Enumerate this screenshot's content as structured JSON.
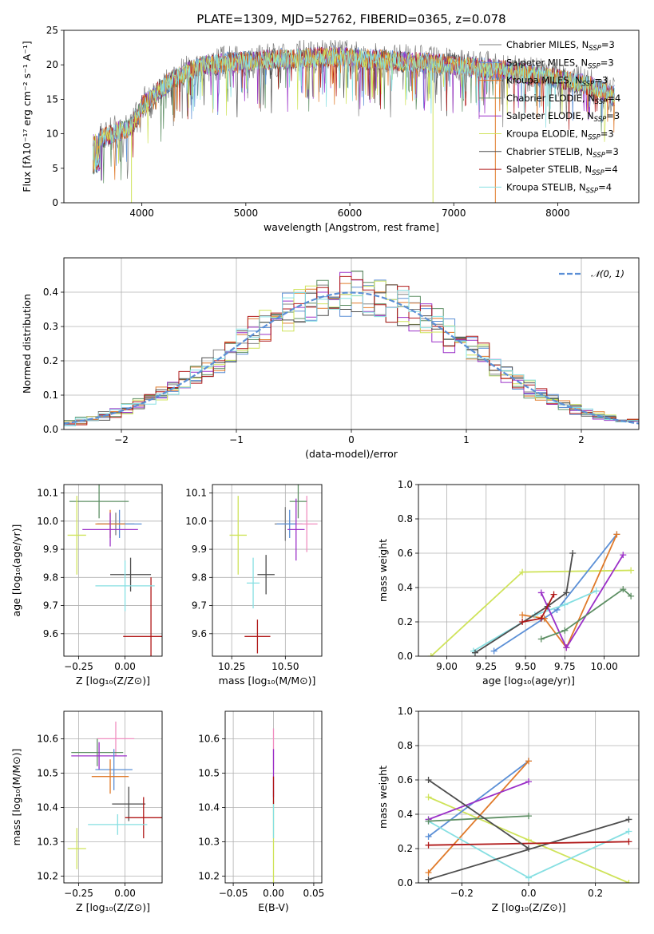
{
  "colors": {
    "Chabrier MILES": "#808080",
    "Salpeter MILES": "#5b8fd6",
    "Kroupa MILES": "#e07a2a",
    "Chabrier ELODIE": "#5e8f64",
    "Salpeter ELODIE": "#9b30c8",
    "Kroupa ELODIE": "#cfe35a",
    "Chabrier STELIB": "#4d4d4d",
    "Salpeter STELIB": "#b01818",
    "Kroupa STELIB": "#86dfe2",
    "pink": "#f08ec0",
    "normal": "#5b8fd6"
  },
  "chart_data": [
    {
      "id": "spectrum",
      "type": "line",
      "title": "PLATE=1309, MJD=52762, FIBERID=0365, z=0.078",
      "xlabel": "wavelength [Angstrom, rest frame]",
      "ylabel": "Flux [fλ10⁻¹⁷ erg cm⁻² s⁻¹ A⁻¹]",
      "xlim": [
        3250,
        8780
      ],
      "ylim": [
        0,
        25
      ],
      "xticks": [
        "4000",
        "5000",
        "6000",
        "7000",
        "8000"
      ],
      "yticks": [
        "0",
        "5",
        "10",
        "15",
        "20",
        "25"
      ],
      "legend_position": "top-right",
      "legend": [
        {
          "name": "Chabrier MILES",
          "sub": "N",
          "ssp": "SSP",
          "n": "=3"
        },
        {
          "name": "Salpeter MILES",
          "sub": "N",
          "ssp": "SSP",
          "n": "=3"
        },
        {
          "name": "Kroupa MILES",
          "sub": "N",
          "ssp": "SSP",
          "n": "=3"
        },
        {
          "name": "Chabrier ELODIE",
          "sub": "N",
          "ssp": "SSP",
          "n": "=4"
        },
        {
          "name": "Salpeter ELODIE",
          "sub": "N",
          "ssp": "SSP",
          "n": "=3"
        },
        {
          "name": "Kroupa ELODIE",
          "sub": "N",
          "ssp": "SSP",
          "n": "=3"
        },
        {
          "name": "Chabrier STELIB",
          "sub": "N",
          "ssp": "SSP",
          "n": "=3"
        },
        {
          "name": "Salpeter STELIB",
          "sub": "N",
          "ssp": "SSP",
          "n": "=4"
        },
        {
          "name": "Kroupa STELIB",
          "sub": "N",
          "ssp": "SSP",
          "n": "=4"
        }
      ],
      "envelope": [
        [
          3530,
          9
        ],
        [
          3700,
          10
        ],
        [
          3900,
          11
        ],
        [
          4000,
          14
        ],
        [
          4300,
          18
        ],
        [
          4600,
          20
        ],
        [
          5000,
          20.5
        ],
        [
          5500,
          21
        ],
        [
          5900,
          21.2
        ],
        [
          6200,
          20.8
        ],
        [
          6500,
          20.5
        ],
        [
          7000,
          20
        ],
        [
          7300,
          19.5
        ],
        [
          7600,
          19
        ],
        [
          8000,
          18
        ],
        [
          8300,
          17
        ],
        [
          8550,
          15.5
        ]
      ]
    },
    {
      "id": "residuals",
      "type": "line",
      "xlabel": "(data-model)/error",
      "ylabel": "Normed distribution",
      "xlim": [
        -2.5,
        2.5
      ],
      "ylim": [
        0,
        0.5
      ],
      "xticks": [
        "−2",
        "−1",
        "0",
        "1",
        "2"
      ],
      "yticks": [
        "0.0",
        "0.1",
        "0.2",
        "0.3",
        "0.4"
      ],
      "legend": "𝒩(0, 1)",
      "histogram_bins": 50
    },
    {
      "id": "age-vs-Z",
      "type": "scatter",
      "xlabel": "Z [log₁₀(Z/Z⊙)]",
      "ylabel": "age  [log₁₀(age/yr)]",
      "xlim": [
        -0.33,
        0.2
      ],
      "ylim": [
        9.52,
        10.13
      ],
      "xticks": [
        "−0.25",
        "0.00"
      ],
      "yticks": [
        "9.6",
        "9.7",
        "9.8",
        "9.9",
        "10.0",
        "10.1"
      ],
      "points": [
        {
          "series": "Chabrier MILES",
          "x": -0.05,
          "y": 9.99,
          "xerr": 0.1,
          "yerr": 0.04
        },
        {
          "series": "Salpeter MILES",
          "x": -0.03,
          "y": 9.99,
          "xerr": 0.12,
          "yerr": 0.05
        },
        {
          "series": "Kroupa MILES",
          "x": -0.08,
          "y": 9.99,
          "xerr": 0.08,
          "yerr": 0.05
        },
        {
          "series": "Chabrier ELODIE",
          "x": -0.14,
          "y": 10.07,
          "xerr": 0.16,
          "yerr": 0.06
        },
        {
          "series": "Salpeter ELODIE",
          "x": -0.08,
          "y": 9.97,
          "xerr": 0.15,
          "yerr": 0.06
        },
        {
          "series": "Kroupa ELODIE",
          "x": -0.26,
          "y": 9.95,
          "xerr": 0.05,
          "yerr": 0.14
        },
        {
          "series": "Chabrier STELIB",
          "x": 0.03,
          "y": 9.81,
          "xerr": 0.11,
          "yerr": 0.06
        },
        {
          "series": "Salpeter STELIB",
          "x": 0.14,
          "y": 9.59,
          "xerr": 0.15,
          "yerr": 0.21
        },
        {
          "series": "Kroupa STELIB",
          "x": 0.0,
          "y": 9.77,
          "xerr": 0.16,
          "yerr": 0.09
        }
      ]
    },
    {
      "id": "age-vs-mass",
      "type": "scatter",
      "xlabel": "mass [log₁₀(M/M⊙)]",
      "xlim": [
        10.16,
        10.67
      ],
      "ylim": [
        9.52,
        10.13
      ],
      "xticks": [
        "10.25",
        "10.50"
      ],
      "yticks": [
        "9.6",
        "9.7",
        "9.8",
        "9.9",
        "10.0",
        "10.1"
      ],
      "points": [
        {
          "series": "Chabrier MILES",
          "x": 10.5,
          "y": 9.99,
          "xerr": 0.05,
          "yerr": 0.06
        },
        {
          "series": "Salpeter MILES",
          "x": 10.52,
          "y": 9.99,
          "xerr": 0.06,
          "yerr": 0.05
        },
        {
          "series": "pink",
          "x": 10.6,
          "y": 9.99,
          "xerr": 0.05,
          "yerr": 0.1
        },
        {
          "series": "Chabrier ELODIE",
          "x": 10.56,
          "y": 10.07,
          "xerr": 0.04,
          "yerr": 0.06
        },
        {
          "series": "Salpeter ELODIE",
          "x": 10.55,
          "y": 9.97,
          "xerr": 0.04,
          "yerr": 0.11
        },
        {
          "series": "Kroupa ELODIE",
          "x": 10.28,
          "y": 9.95,
          "xerr": 0.04,
          "yerr": 0.14
        },
        {
          "series": "Chabrier STELIB",
          "x": 10.41,
          "y": 9.81,
          "xerr": 0.04,
          "yerr": 0.07
        },
        {
          "series": "Salpeter STELIB",
          "x": 10.37,
          "y": 9.59,
          "xerr": 0.06,
          "yerr": 0.06
        },
        {
          "series": "Kroupa STELIB",
          "x": 10.35,
          "y": 9.78,
          "xerr": 0.03,
          "yerr": 0.09
        }
      ]
    },
    {
      "id": "weight-vs-age",
      "type": "line",
      "xlabel": "age  [log₁₀(age/yr)]",
      "ylabel": "mass weight",
      "xlim": [
        8.82,
        10.22
      ],
      "ylim": [
        0,
        1
      ],
      "xticks": [
        "9.00",
        "9.25",
        "9.50",
        "9.75",
        "10.00"
      ],
      "yticks": [
        "0.0",
        "0.2",
        "0.4",
        "0.6",
        "0.8",
        "1.0"
      ],
      "series": [
        {
          "name": "Kroupa ELODIE",
          "x": [
            8.9,
            9.48,
            10.17
          ],
          "y": [
            0.0,
            0.49,
            0.5
          ]
        },
        {
          "name": "Salpeter MILES",
          "x": [
            9.3,
            9.7,
            10.08
          ],
          "y": [
            0.03,
            0.27,
            0.71
          ]
        },
        {
          "name": "Kroupa MILES",
          "x": [
            9.48,
            9.62,
            9.76,
            10.08
          ],
          "y": [
            0.24,
            0.22,
            0.05,
            0.71
          ]
        },
        {
          "name": "Kroupa STELIB",
          "x": [
            9.17,
            9.56,
            9.75,
            9.95
          ],
          "y": [
            0.03,
            0.24,
            0.3,
            0.38
          ]
        },
        {
          "name": "Chabrier STELIB",
          "x": [
            9.18,
            9.64,
            9.76,
            9.8
          ],
          "y": [
            0.02,
            0.29,
            0.37,
            0.6
          ]
        },
        {
          "name": "Salpeter ELODIE",
          "x": [
            9.6,
            9.76,
            10.12
          ],
          "y": [
            0.37,
            0.05,
            0.59
          ]
        },
        {
          "name": "Salpeter STELIB",
          "x": [
            9.48,
            9.6,
            9.68
          ],
          "y": [
            0.2,
            0.22,
            0.36
          ]
        },
        {
          "name": "Chabrier ELODIE",
          "x": [
            9.6,
            9.75,
            10.12,
            10.17
          ],
          "y": [
            0.1,
            0.15,
            0.39,
            0.35
          ]
        }
      ]
    },
    {
      "id": "mass-vs-Z",
      "type": "scatter",
      "xlabel": "Z [log₁₀(Z/Z⊙)]",
      "ylabel": "mass [log₁₀(M/M⊙)]",
      "xlim": [
        -0.33,
        0.2
      ],
      "ylim": [
        10.18,
        10.68
      ],
      "xticks": [
        "−0.25",
        "0.00"
      ],
      "yticks": [
        "10.2",
        "10.3",
        "10.4",
        "10.5",
        "10.6"
      ],
      "points": [
        {
          "series": "pink",
          "x": -0.05,
          "y": 10.6,
          "xerr": 0.1,
          "yerr": 0.05
        },
        {
          "series": "Chabrier ELODIE",
          "x": -0.15,
          "y": 10.56,
          "xerr": 0.14,
          "yerr": 0.04
        },
        {
          "series": "Salpeter ELODIE",
          "x": -0.14,
          "y": 10.55,
          "xerr": 0.15,
          "yerr": 0.04
        },
        {
          "series": "Salpeter MILES",
          "x": -0.06,
          "y": 10.51,
          "xerr": 0.1,
          "yerr": 0.06
        },
        {
          "series": "Kroupa MILES",
          "x": -0.08,
          "y": 10.49,
          "xerr": 0.1,
          "yerr": 0.05
        },
        {
          "series": "Chabrier STELIB",
          "x": 0.02,
          "y": 10.41,
          "xerr": 0.09,
          "yerr": 0.05
        },
        {
          "series": "Salpeter STELIB",
          "x": 0.1,
          "y": 10.37,
          "xerr": 0.1,
          "yerr": 0.06
        },
        {
          "series": "Kroupa STELIB",
          "x": -0.04,
          "y": 10.35,
          "xerr": 0.16,
          "yerr": 0.03
        },
        {
          "series": "Kroupa ELODIE",
          "x": -0.26,
          "y": 10.28,
          "xerr": 0.05,
          "yerr": 0.06
        }
      ]
    },
    {
      "id": "mass-vs-EBV",
      "type": "scatter",
      "xlabel": "E(B-V)",
      "xlim": [
        -0.06,
        0.06
      ],
      "ylim": [
        10.18,
        10.68
      ],
      "xticks": [
        "−0.05",
        "0.00",
        "0.05"
      ],
      "yticks": [
        "10.2",
        "10.3",
        "10.4",
        "10.5",
        "10.6"
      ],
      "points": [
        {
          "series": "Kroupa ELODIE",
          "x": 0.0,
          "y": 10.3,
          "xerr": 0.0,
          "yerr": 0.12
        },
        {
          "series": "Kroupa STELIB",
          "x": 0.0,
          "y": 10.38,
          "xerr": 0.0,
          "yerr": 0.07
        },
        {
          "series": "pink",
          "x": 0.0,
          "y": 10.57,
          "xerr": 0.0,
          "yerr": 0.06
        },
        {
          "series": "Salpeter ELODIE",
          "x": 0.0,
          "y": 10.5,
          "xerr": 0.0,
          "yerr": 0.07
        },
        {
          "series": "Salpeter STELIB",
          "x": 0.0,
          "y": 10.45,
          "xerr": 0.0,
          "yerr": 0.04
        }
      ]
    },
    {
      "id": "weight-vs-Z",
      "type": "line",
      "xlabel": "Z [log₁₀(Z/Z⊙)]",
      "ylabel": "mass weight",
      "xlim": [
        -0.33,
        0.33
      ],
      "ylim": [
        0,
        1
      ],
      "xticks": [
        "−0.2",
        "0.0",
        "0.2"
      ],
      "yticks": [
        "0.0",
        "0.2",
        "0.4",
        "0.6",
        "0.8",
        "1.0"
      ],
      "series": [
        {
          "name": "Kroupa ELODIE",
          "x": [
            -0.3,
            0.0,
            0.3
          ],
          "y": [
            0.5,
            0.25,
            0.0
          ]
        },
        {
          "name": "Salpeter MILES",
          "x": [
            -0.3,
            0.0
          ],
          "y": [
            0.27,
            0.71
          ]
        },
        {
          "name": "Kroupa MILES",
          "x": [
            -0.3,
            0.0
          ],
          "y": [
            0.06,
            0.71
          ]
        },
        {
          "name": "Kroupa STELIB",
          "x": [
            -0.3,
            0.0,
            0.3
          ],
          "y": [
            0.36,
            0.03,
            0.3
          ]
        },
        {
          "name": "Chabrier STELIB",
          "x": [
            -0.3,
            0.3
          ],
          "y": [
            0.02,
            0.37
          ]
        },
        {
          "name": "Salpeter ELODIE",
          "x": [
            -0.3,
            0.0
          ],
          "y": [
            0.37,
            0.59
          ]
        },
        {
          "name": "Salpeter STELIB",
          "x": [
            -0.3,
            0.3
          ],
          "y": [
            0.22,
            0.24
          ]
        },
        {
          "name": "Chabrier ELODIE",
          "x": [
            -0.3,
            0.0
          ],
          "y": [
            0.36,
            0.39
          ]
        },
        {
          "name": "Chabrier STELIB",
          "x": [
            -0.3,
            0.0
          ],
          "y": [
            0.6,
            0.2
          ]
        }
      ]
    }
  ]
}
